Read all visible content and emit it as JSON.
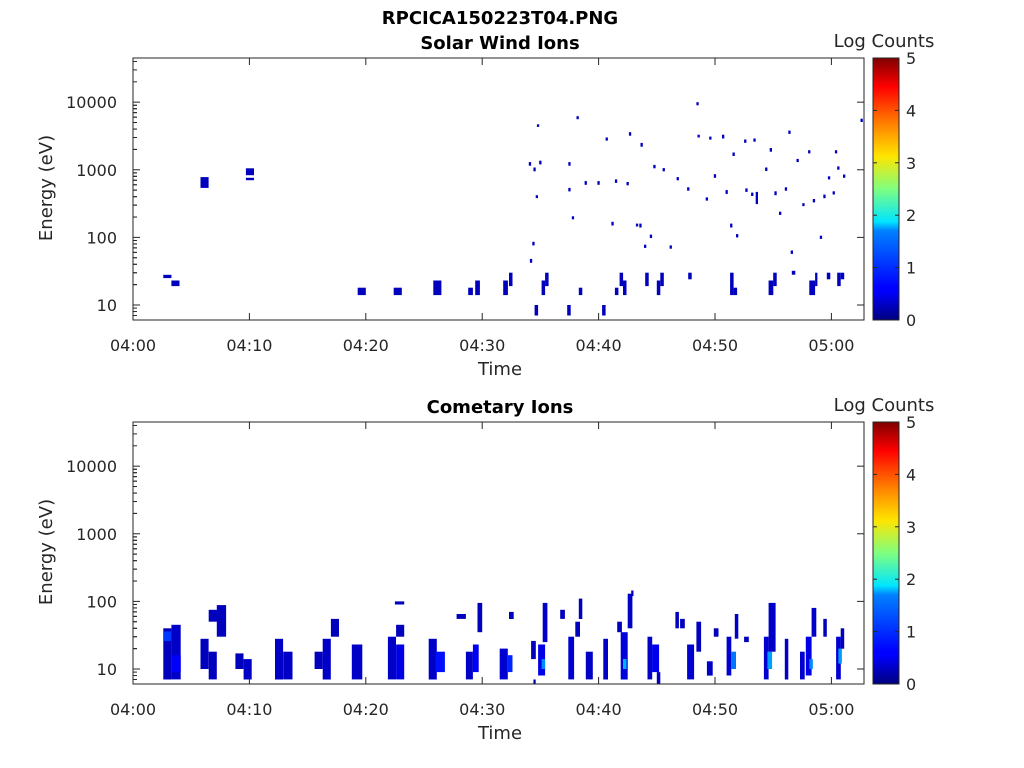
{
  "figure_title": "RPCICA150223T04.PNG",
  "chart_data": [
    {
      "type": "heatmap",
      "title": "Solar Wind Ions",
      "xlabel": "Time",
      "ylabel": "Energy (eV)",
      "x_ticks": [
        "04:00",
        "04:10",
        "04:20",
        "04:30",
        "04:40",
        "04:50",
        "05:00"
      ],
      "x_tick_minutes": [
        0,
        10,
        20,
        30,
        40,
        50,
        60
      ],
      "xlim_minutes": [
        0,
        62.8
      ],
      "y_scale": "log",
      "ylim": [
        6,
        45000
      ],
      "y_ticks": [
        10,
        100,
        1000,
        10000
      ],
      "y_tick_labels": [
        "10",
        "100",
        "1000",
        "10000"
      ],
      "colorbar": {
        "label": "Log Counts",
        "range": [
          0,
          5
        ],
        "ticks": [
          "0",
          "1",
          "2",
          "3",
          "4",
          "5"
        ],
        "colormap": "jet"
      },
      "cells": [
        [
          2.6,
          3.3,
          25,
          28,
          0.3
        ],
        [
          3.3,
          4.0,
          19,
          23,
          0.3
        ],
        [
          5.8,
          6.5,
          540,
          780,
          0.3
        ],
        [
          9.7,
          10.4,
          830,
          1050,
          0.3
        ],
        [
          9.7,
          10.4,
          700,
          760,
          0.3
        ],
        [
          19.3,
          20.0,
          14,
          18,
          0.3
        ],
        [
          22.4,
          23.1,
          14,
          18,
          0.3
        ],
        [
          25.8,
          26.5,
          14,
          23,
          0.3
        ],
        [
          28.8,
          29.2,
          14,
          18,
          0.3
        ],
        [
          29.4,
          29.8,
          14,
          23,
          0.3
        ],
        [
          31.8,
          32.2,
          14,
          23,
          0.3
        ],
        [
          32.3,
          32.6,
          19,
          30,
          0.3
        ],
        [
          34.5,
          34.8,
          7,
          10,
          0.3
        ],
        [
          35.1,
          35.4,
          14,
          23,
          0.3
        ],
        [
          35.4,
          35.7,
          19,
          30,
          0.3
        ],
        [
          37.3,
          37.6,
          7,
          10,
          0.3
        ],
        [
          38.3,
          38.6,
          14,
          18,
          0.3
        ],
        [
          40.3,
          40.6,
          7,
          10,
          0.3
        ],
        [
          41.4,
          41.7,
          14,
          18,
          0.3
        ],
        [
          41.8,
          42.1,
          19,
          30,
          0.3
        ],
        [
          42.1,
          42.4,
          14,
          23,
          0.3
        ],
        [
          44.0,
          44.3,
          19,
          30,
          0.3
        ],
        [
          45.0,
          45.3,
          14,
          23,
          0.3
        ],
        [
          45.3,
          45.6,
          19,
          30,
          0.3
        ],
        [
          47.7,
          48.0,
          24,
          30,
          0.3
        ],
        [
          51.3,
          51.6,
          14,
          30,
          0.3
        ],
        [
          51.6,
          51.9,
          14,
          18,
          0.3
        ],
        [
          54.6,
          55.0,
          14,
          23,
          0.3
        ],
        [
          55.0,
          55.3,
          19,
          30,
          0.3
        ],
        [
          56.6,
          56.9,
          28,
          32,
          0.3
        ],
        [
          58.1,
          58.6,
          14,
          23,
          0.3
        ],
        [
          58.6,
          58.8,
          19,
          30,
          0.3
        ],
        [
          59.6,
          59.9,
          24,
          30,
          0.3
        ],
        [
          60.5,
          60.8,
          19,
          30,
          0.3
        ],
        [
          60.8,
          61.1,
          24,
          30,
          0.3
        ],
        [
          34.0,
          34.2,
          1150,
          1300,
          0.3
        ],
        [
          34.4,
          34.6,
          950,
          1080,
          0.3
        ],
        [
          34.7,
          34.9,
          4300,
          4700,
          0.3
        ],
        [
          34.6,
          34.8,
          380,
          420,
          0.3
        ],
        [
          34.9,
          35.1,
          1200,
          1360,
          0.3
        ],
        [
          34.3,
          34.5,
          76,
          86,
          0.3
        ],
        [
          34.1,
          34.3,
          42,
          48,
          0.3
        ],
        [
          37.4,
          37.6,
          1150,
          1300,
          0.3
        ],
        [
          37.4,
          37.6,
          480,
          540,
          0.3
        ],
        [
          37.7,
          37.9,
          185,
          205,
          0.3
        ],
        [
          38.1,
          38.3,
          5600,
          6200,
          0.3
        ],
        [
          38.8,
          39.0,
          600,
          680,
          0.3
        ],
        [
          39.9,
          40.1,
          600,
          680,
          0.3
        ],
        [
          40.6,
          40.8,
          2700,
          3000,
          0.3
        ],
        [
          41.1,
          41.3,
          150,
          170,
          0.3
        ],
        [
          41.4,
          41.6,
          640,
          720,
          0.3
        ],
        [
          42.4,
          42.6,
          590,
          660,
          0.3
        ],
        [
          42.6,
          42.8,
          3200,
          3600,
          0.3
        ],
        [
          43.2,
          43.4,
          145,
          160,
          0.3
        ],
        [
          43.5,
          43.7,
          140,
          160,
          0.3
        ],
        [
          43.6,
          43.8,
          2200,
          2500,
          0.3
        ],
        [
          43.9,
          44.1,
          70,
          78,
          0.3
        ],
        [
          44.4,
          44.6,
          98,
          110,
          0.3
        ],
        [
          44.7,
          44.9,
          1050,
          1180,
          0.3
        ],
        [
          45.5,
          45.7,
          950,
          1060,
          0.3
        ],
        [
          46.1,
          46.3,
          68,
          76,
          0.3
        ],
        [
          46.7,
          46.9,
          700,
          780,
          0.3
        ],
        [
          47.6,
          47.8,
          490,
          550,
          0.3
        ],
        [
          48.4,
          48.6,
          9000,
          10000,
          0.3
        ],
        [
          48.5,
          48.7,
          3000,
          3300,
          0.3
        ],
        [
          49.5,
          49.7,
          2800,
          3100,
          0.3
        ],
        [
          49.2,
          49.4,
          350,
          390,
          0.3
        ],
        [
          49.9,
          50.1,
          760,
          860,
          0.3
        ],
        [
          50.6,
          50.8,
          2900,
          3300,
          0.3
        ],
        [
          50.9,
          51.1,
          440,
          500,
          0.3
        ],
        [
          51.3,
          51.5,
          140,
          160,
          0.3
        ],
        [
          51.5,
          51.7,
          1600,
          1800,
          0.3
        ],
        [
          51.8,
          52.0,
          100,
          112,
          0.3
        ],
        [
          52.5,
          52.7,
          2500,
          2800,
          0.3
        ],
        [
          52.6,
          52.8,
          470,
          530,
          0.3
        ],
        [
          53.1,
          53.3,
          410,
          460,
          0.3
        ],
        [
          53.3,
          53.5,
          2600,
          2900,
          0.3
        ],
        [
          53.5,
          53.7,
          310,
          470,
          0.3
        ],
        [
          54.3,
          54.5,
          960,
          1080,
          0.3
        ],
        [
          54.7,
          54.9,
          1850,
          2100,
          0.3
        ],
        [
          55.1,
          55.3,
          420,
          480,
          0.3
        ],
        [
          55.5,
          55.7,
          215,
          240,
          0.3
        ],
        [
          56.0,
          56.2,
          490,
          550,
          0.3
        ],
        [
          56.3,
          56.5,
          3400,
          3800,
          0.3
        ],
        [
          56.5,
          56.7,
          57,
          64,
          0.3
        ],
        [
          57.0,
          57.2,
          1300,
          1450,
          0.3
        ],
        [
          57.5,
          57.7,
          290,
          320,
          0.3
        ],
        [
          58.0,
          58.2,
          1750,
          1950,
          0.3
        ],
        [
          58.4,
          58.6,
          330,
          370,
          0.3
        ],
        [
          59.0,
          59.2,
          95,
          106,
          0.3
        ],
        [
          59.3,
          59.5,
          380,
          430,
          0.3
        ],
        [
          59.7,
          59.9,
          720,
          800,
          0.3
        ],
        [
          60.3,
          60.5,
          1750,
          1950,
          0.3
        ],
        [
          60.5,
          60.7,
          1000,
          1120,
          0.3
        ],
        [
          60.1,
          60.3,
          430,
          480,
          0.3
        ],
        [
          61.0,
          61.2,
          760,
          850,
          0.3
        ],
        [
          62.5,
          62.7,
          5100,
          5700,
          0.3
        ]
      ]
    },
    {
      "type": "heatmap",
      "title": "Cometary Ions",
      "xlabel": "Time",
      "ylabel": "Energy (eV)",
      "x_ticks": [
        "04:00",
        "04:10",
        "04:20",
        "04:30",
        "04:40",
        "04:50",
        "05:00"
      ],
      "x_tick_minutes": [
        0,
        10,
        20,
        30,
        40,
        50,
        60
      ],
      "xlim_minutes": [
        0,
        62.8
      ],
      "y_scale": "log",
      "ylim": [
        6,
        45000
      ],
      "y_ticks": [
        10,
        100,
        1000,
        10000
      ],
      "y_tick_labels": [
        "10",
        "100",
        "1000",
        "10000"
      ],
      "colorbar": {
        "label": "Log Counts",
        "range": [
          0,
          5
        ],
        "ticks": [
          "0",
          "1",
          "2",
          "3",
          "4",
          "5"
        ],
        "colormap": "jet"
      },
      "cells": [
        [
          2.6,
          3.3,
          7,
          40,
          0.3
        ],
        [
          2.6,
          3.3,
          26,
          36,
          0.9
        ],
        [
          3.3,
          4.1,
          7,
          45,
          0.35
        ],
        [
          3.3,
          4.1,
          9,
          16,
          0.6
        ],
        [
          5.8,
          6.5,
          10,
          28,
          0.3
        ],
        [
          6.5,
          7.2,
          7,
          18,
          0.3
        ],
        [
          6.5,
          7.4,
          50,
          75,
          0.3
        ],
        [
          7.2,
          8.0,
          30,
          88,
          0.3
        ],
        [
          8.8,
          9.5,
          10,
          17,
          0.3
        ],
        [
          9.5,
          10.2,
          7,
          14,
          0.35
        ],
        [
          12.2,
          12.9,
          7,
          28,
          0.35
        ],
        [
          12.9,
          13.7,
          7,
          18,
          0.35
        ],
        [
          15.6,
          16.3,
          10,
          18,
          0.3
        ],
        [
          16.3,
          17.0,
          7,
          28,
          0.35
        ],
        [
          17.0,
          17.7,
          30,
          55,
          0.3
        ],
        [
          18.8,
          19.7,
          7,
          23,
          0.35
        ],
        [
          21.9,
          22.6,
          7,
          30,
          0.35
        ],
        [
          22.6,
          23.3,
          7,
          23,
          0.5
        ],
        [
          22.6,
          23.3,
          30,
          45,
          0.3
        ],
        [
          22.5,
          23.3,
          90,
          100,
          0.3
        ],
        [
          25.4,
          26.1,
          7,
          28,
          0.35
        ],
        [
          26.0,
          26.8,
          9,
          18,
          0.7
        ],
        [
          27.8,
          28.6,
          55,
          65,
          0.3
        ],
        [
          28.6,
          29.2,
          7,
          18,
          0.35
        ],
        [
          29.2,
          29.7,
          9,
          23,
          0.6
        ],
        [
          29.6,
          30.0,
          35,
          95,
          0.3
        ],
        [
          31.5,
          32.2,
          7,
          20,
          0.4
        ],
        [
          32.2,
          32.6,
          9,
          16,
          0.8
        ],
        [
          32.3,
          32.7,
          55,
          70,
          0.3
        ],
        [
          34.2,
          34.6,
          14,
          26,
          0.3
        ],
        [
          34.4,
          34.6,
          6,
          7,
          0.3
        ],
        [
          34.8,
          35.4,
          8,
          23,
          0.5
        ],
        [
          35.1,
          35.4,
          10,
          14,
          1.3
        ],
        [
          35.2,
          35.6,
          25,
          95,
          0.35
        ],
        [
          36.7,
          37.1,
          55,
          75,
          0.3
        ],
        [
          37.4,
          37.9,
          7,
          30,
          0.4
        ],
        [
          38.0,
          38.4,
          30,
          50,
          0.3
        ],
        [
          38.3,
          38.6,
          55,
          110,
          0.3
        ],
        [
          38.9,
          39.5,
          7,
          18,
          0.35
        ],
        [
          40.4,
          40.8,
          7,
          28,
          0.35
        ],
        [
          41.6,
          42.0,
          35,
          50,
          0.3
        ],
        [
          41.9,
          42.5,
          7,
          35,
          0.45
        ],
        [
          42.1,
          42.4,
          10,
          14,
          1.5
        ],
        [
          42.5,
          42.9,
          40,
          130,
          0.35
        ],
        [
          42.8,
          43.0,
          120,
          145,
          0.3
        ],
        [
          44.2,
          44.6,
          7,
          30,
          0.35
        ],
        [
          44.6,
          45.2,
          9,
          23,
          0.55
        ],
        [
          45.0,
          45.3,
          6,
          9,
          0.3
        ],
        [
          46.6,
          46.9,
          40,
          70,
          0.3
        ],
        [
          47.0,
          47.4,
          40,
          55,
          0.3
        ],
        [
          47.6,
          48.2,
          7,
          23,
          0.4
        ],
        [
          48.4,
          48.8,
          18,
          50,
          0.3
        ],
        [
          49.3,
          49.8,
          8,
          13,
          0.35
        ],
        [
          49.9,
          50.3,
          30,
          40,
          0.3
        ],
        [
          51.0,
          51.4,
          8,
          30,
          0.4
        ],
        [
          51.4,
          51.8,
          10,
          18,
          1.2
        ],
        [
          51.7,
          52.0,
          28,
          65,
          0.35
        ],
        [
          52.5,
          52.9,
          25,
          30,
          0.3
        ],
        [
          54.2,
          54.6,
          7,
          30,
          0.4
        ],
        [
          54.5,
          54.9,
          10,
          18,
          1.4
        ],
        [
          54.6,
          55.2,
          18,
          95,
          0.35
        ],
        [
          56.0,
          56.3,
          7,
          28,
          0.35
        ],
        [
          57.3,
          57.7,
          7,
          18,
          0.4
        ],
        [
          57.8,
          58.3,
          8,
          30,
          0.5
        ],
        [
          58.1,
          58.4,
          10,
          14,
          1.3
        ],
        [
          58.3,
          58.7,
          30,
          80,
          0.35
        ],
        [
          59.3,
          59.6,
          30,
          55,
          0.3
        ],
        [
          60.4,
          60.8,
          7,
          30,
          0.4
        ],
        [
          60.6,
          60.9,
          12,
          20,
          1.4
        ],
        [
          60.8,
          61.1,
          20,
          40,
          0.3
        ]
      ]
    }
  ]
}
